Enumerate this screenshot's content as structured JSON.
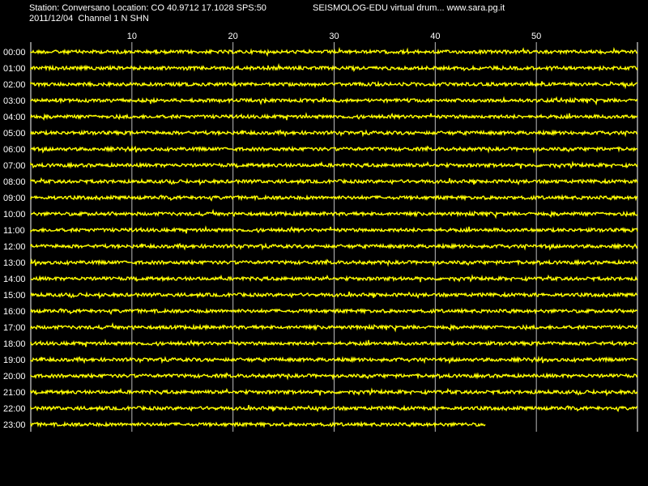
{
  "header": {
    "station_line": "Station: Conversano Location: CO 40.9712 17.1028 SPS:50",
    "date_channel": "2011/12/04  Channel 1 N SHN",
    "app_title": "SEISMOLOG-EDU virtual drum... www.sara.pg.it"
  },
  "colors": {
    "background": "#000000",
    "trace": "#ffff00",
    "grid": "#ffffff",
    "text": "#ffffff"
  },
  "chart_data": {
    "type": "line",
    "title": "SEISMOLOG-EDU virtual drum... www.sara.pg.it",
    "x_unit": "minutes",
    "xlim": [
      0,
      60
    ],
    "x_ticks": [
      10,
      20,
      30,
      40,
      50
    ],
    "x_tick_labels": [
      "10",
      "20",
      "30",
      "40",
      "50"
    ],
    "grid": true,
    "rows": [
      "00:00",
      "01:00",
      "02:00",
      "03:00",
      "04:00",
      "05:00",
      "06:00",
      "07:00",
      "08:00",
      "09:00",
      "10:00",
      "11:00",
      "12:00",
      "13:00",
      "14:00",
      "15:00",
      "16:00",
      "17:00",
      "18:00",
      "19:00",
      "20:00",
      "21:00",
      "22:00",
      "23:00"
    ],
    "row_end_minutes": [
      60,
      60,
      60,
      60,
      60,
      60,
      60,
      60,
      60,
      60,
      60,
      60,
      60,
      60,
      60,
      60,
      60,
      60,
      60,
      60,
      60,
      60,
      60,
      45
    ],
    "series": [
      {
        "values_note": "",
        "amplitude": "low-noise"
      }
    ]
  }
}
